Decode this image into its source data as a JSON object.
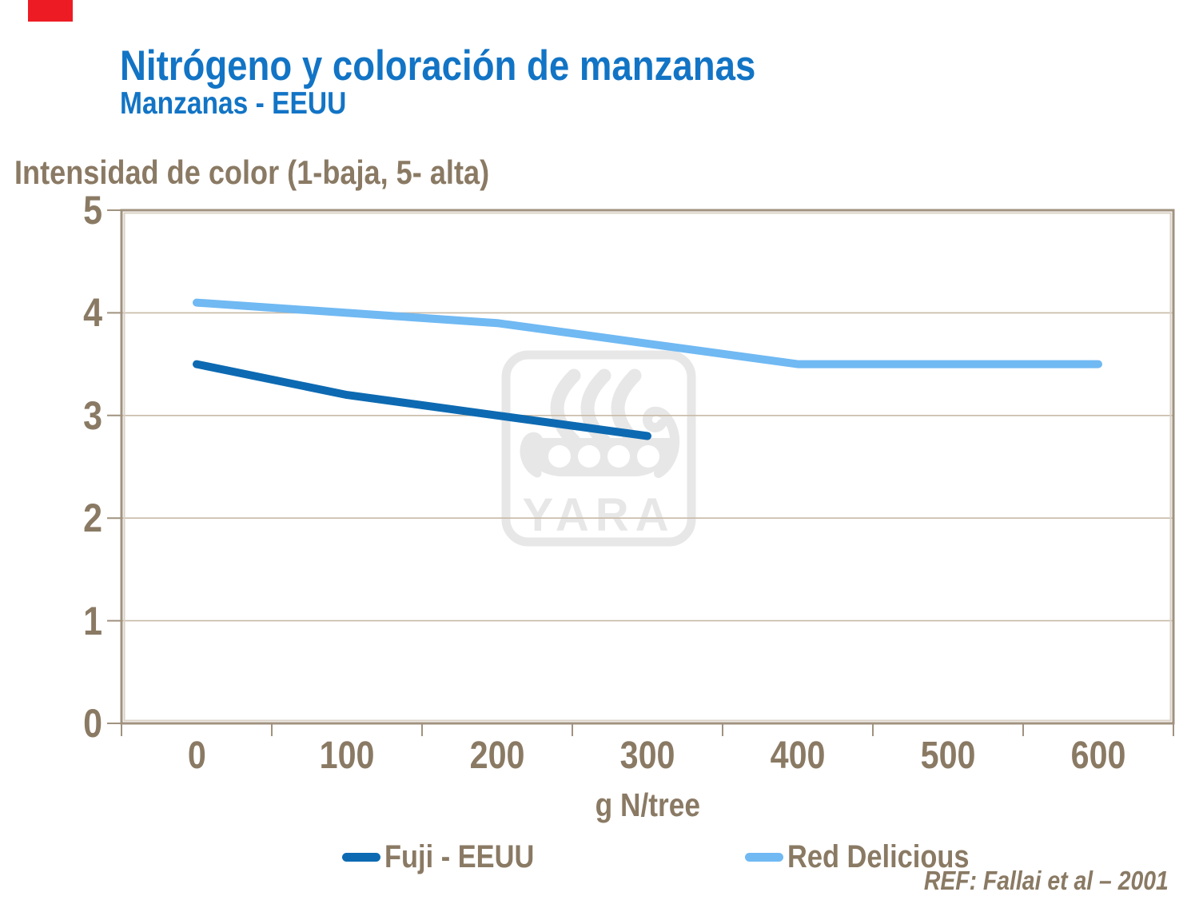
{
  "slide": {
    "accent_block_color": "#ED1C24"
  },
  "header": {
    "title": "Nitrógeno y coloración de manzanas",
    "subtitle": "Manzanas - EEUU"
  },
  "chart_data": {
    "type": "line",
    "y_axis_title": "Intensidad de color (1-baja, 5- alta)",
    "x_axis_title": "g N/tree",
    "categories": [
      "0",
      "100",
      "200",
      "300",
      "400",
      "500",
      "600"
    ],
    "series": [
      {
        "name": "Fuji - EEUU",
        "color": "#0D6AB2",
        "values": [
          3.5,
          3.2,
          3.0,
          2.8
        ]
      },
      {
        "name": "Red Delicious",
        "color": "#70B9F3",
        "values": [
          4.1,
          4.0,
          3.9,
          3.7,
          3.5,
          3.5,
          3.5
        ]
      }
    ],
    "ylim": [
      0,
      5
    ],
    "y_ticks": [
      "0",
      "1",
      "2",
      "3",
      "4",
      "5"
    ],
    "grid": "horizontal",
    "legend_position": "bottom"
  },
  "watermark": {
    "label": "YARA",
    "icon": "yara-viking-ship-logo"
  },
  "footer": {
    "reference": "REF: Fallai et al – 2001"
  },
  "colors": {
    "title_blue": "#1274C5",
    "text_brown": "#8A7A64",
    "axis_brown": "#A0927F",
    "axis_bevel_light": "#DAD1C6",
    "grid_tan": "#C8BAA8",
    "watermark_gray": "#E7E7E7",
    "accent_red": "#ED1C24"
  }
}
